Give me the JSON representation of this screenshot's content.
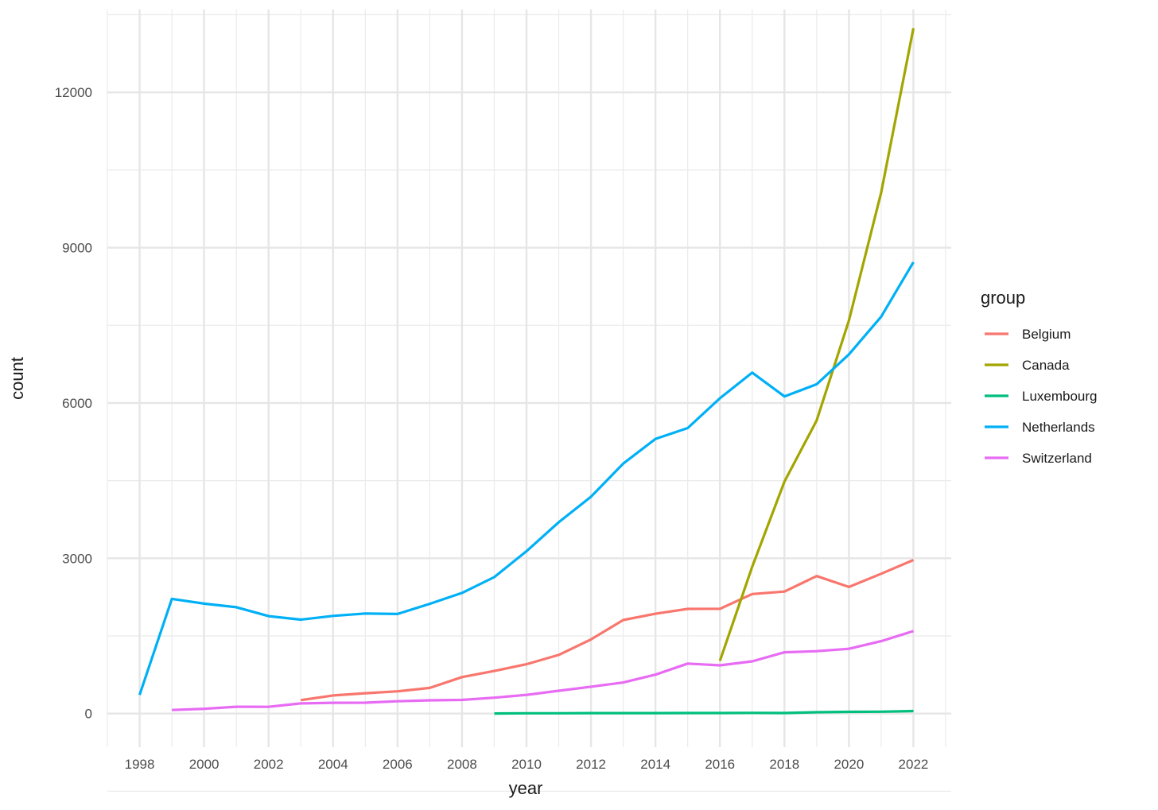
{
  "chart_data": {
    "type": "line",
    "title": "",
    "xlabel": "year",
    "ylabel": "count",
    "xlim": [
      1997,
      2023
    ],
    "ylim": [
      -650,
      13600
    ],
    "x_ticks": [
      1998,
      2000,
      2002,
      2004,
      2006,
      2008,
      2010,
      2012,
      2014,
      2016,
      2018,
      2020,
      2022
    ],
    "x_tick_labels": [
      "1998",
      "2000",
      "2002",
      "2004",
      "2006",
      "2008",
      "2010",
      "2012",
      "2014",
      "2016",
      "2018",
      "2020",
      "2022"
    ],
    "y_ticks": [
      0,
      3000,
      6000,
      9000,
      12000
    ],
    "y_tick_labels": [
      "0",
      "3000",
      "6000",
      "9000",
      "12000"
    ],
    "grid": true,
    "legend": {
      "title": "group",
      "position": "right"
    },
    "series": [
      {
        "name": "Belgium",
        "color": "#F8766D",
        "x": [
          2003,
          2004,
          2005,
          2006,
          2007,
          2008,
          2009,
          2010,
          2011,
          2012,
          2013,
          2014,
          2015,
          2016,
          2017,
          2018,
          2019,
          2020,
          2021,
          2022
        ],
        "values": [
          259,
          349,
          393,
          429,
          495,
          705,
          822,
          953,
          1133,
          1432,
          1807,
          1928,
          2022,
          2024,
          2309,
          2357,
          2656,
          2445,
          2700,
          2966
        ]
      },
      {
        "name": "Canada",
        "color": "#A3A500",
        "x": [
          2016,
          2017,
          2018,
          2019,
          2020,
          2021,
          2022
        ],
        "values": [
          1018,
          2838,
          4480,
          5661,
          7595,
          10064,
          13241
        ]
      },
      {
        "name": "Luxembourg",
        "color": "#00BF7D",
        "x": [
          2009,
          2010,
          2011,
          2012,
          2013,
          2014,
          2015,
          2016,
          2017,
          2018,
          2019,
          2020,
          2021,
          2022
        ],
        "values": [
          1,
          5,
          5,
          8,
          8,
          9,
          10,
          11,
          13,
          11,
          26,
          33,
          36,
          48
        ]
      },
      {
        "name": "Netherlands",
        "color": "#00B0F6",
        "x": [
          1998,
          1999,
          2000,
          2001,
          2002,
          2003,
          2004,
          2005,
          2006,
          2007,
          2008,
          2009,
          2010,
          2011,
          2012,
          2013,
          2014,
          2015,
          2016,
          2017,
          2018,
          2019,
          2020,
          2021,
          2022
        ],
        "values": [
          360,
          2216,
          2123,
          2054,
          1882,
          1815,
          1886,
          1933,
          1923,
          2120,
          2331,
          2636,
          3136,
          3695,
          4188,
          4829,
          5306,
          5516,
          6091,
          6585,
          6126,
          6361,
          6938,
          7666,
          8720
        ]
      },
      {
        "name": "Switzerland",
        "color": "#E76BF3",
        "x": [
          1999,
          2000,
          2001,
          2002,
          2003,
          2004,
          2005,
          2006,
          2007,
          2008,
          2009,
          2010,
          2011,
          2012,
          2013,
          2014,
          2015,
          2016,
          2017,
          2018,
          2019,
          2020,
          2021,
          2022
        ],
        "values": [
          68,
          92,
          131,
          130,
          196,
          208,
          210,
          237,
          256,
          264,
          307,
          360,
          441,
          518,
          600,
          752,
          965,
          932,
          1009,
          1184,
          1205,
          1251,
          1399,
          1594
        ]
      }
    ]
  }
}
